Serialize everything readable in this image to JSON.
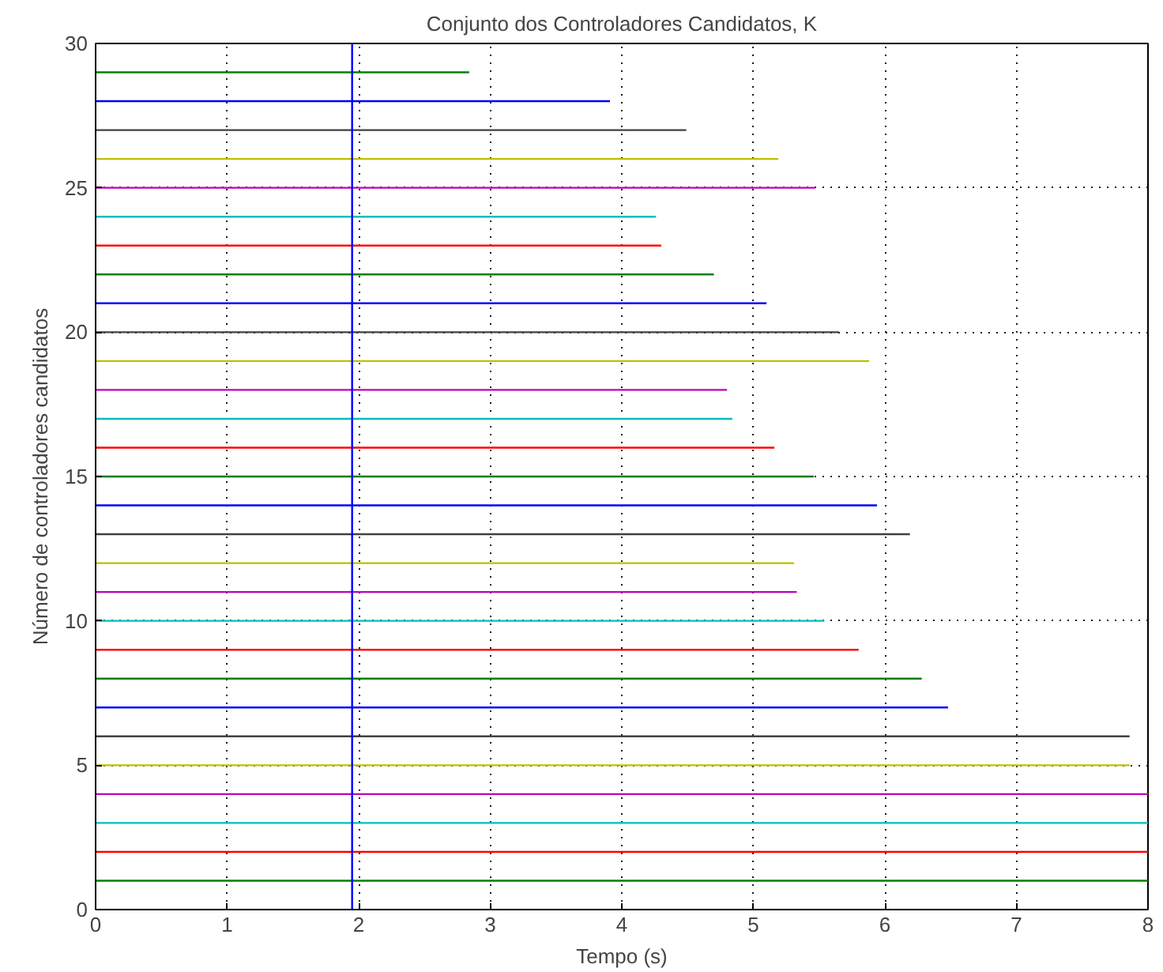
{
  "chart_data": {
    "type": "line",
    "title": "Conjunto dos Controladores Candidatos, K",
    "xlabel": "Tempo (s)",
    "ylabel": "Número de controladores candidatos",
    "xlim": [
      0,
      8
    ],
    "ylim": [
      0,
      30
    ],
    "xticks": [
      0,
      1,
      2,
      3,
      4,
      5,
      6,
      7,
      8
    ],
    "yticks": [
      0,
      5,
      10,
      15,
      20,
      25,
      30
    ],
    "grid": true,
    "line_style": "solid",
    "marker": "none",
    "series": [
      {
        "color": "#008000",
        "x": [
          0,
          8
        ],
        "values": [
          1,
          1
        ]
      },
      {
        "color": "#ff0000",
        "x": [
          0,
          8
        ],
        "values": [
          2,
          2
        ]
      },
      {
        "color": "#00bfbf",
        "x": [
          0,
          8
        ],
        "values": [
          3,
          3
        ]
      },
      {
        "color": "#bf00bf",
        "x": [
          0,
          8
        ],
        "values": [
          4,
          4
        ]
      },
      {
        "color": "#bfbf00",
        "x": [
          0,
          7.86
        ],
        "values": [
          5,
          5
        ]
      },
      {
        "color": "#404040",
        "x": [
          0,
          7.86
        ],
        "values": [
          6,
          6
        ]
      },
      {
        "color": "#0000ff",
        "x": [
          0,
          6.48
        ],
        "values": [
          7,
          7
        ]
      },
      {
        "color": "#008000",
        "x": [
          0,
          6.28
        ],
        "values": [
          8,
          8
        ]
      },
      {
        "color": "#ff0000",
        "x": [
          0,
          5.8
        ],
        "values": [
          9,
          9
        ]
      },
      {
        "color": "#00bfbf",
        "x": [
          0,
          5.54
        ],
        "values": [
          10,
          10
        ]
      },
      {
        "color": "#bf00bf",
        "x": [
          0,
          5.33
        ],
        "values": [
          11,
          11
        ]
      },
      {
        "color": "#bfbf00",
        "x": [
          0,
          5.31
        ],
        "values": [
          12,
          12
        ]
      },
      {
        "color": "#404040",
        "x": [
          0,
          6.19
        ],
        "values": [
          13,
          13
        ]
      },
      {
        "color": "#0000ff",
        "x": [
          0,
          5.94
        ],
        "values": [
          14,
          14
        ]
      },
      {
        "color": "#008000",
        "x": [
          0,
          5.46
        ],
        "values": [
          15,
          15
        ]
      },
      {
        "color": "#ff0000",
        "x": [
          0,
          5.16
        ],
        "values": [
          16,
          16
        ]
      },
      {
        "color": "#00bfbf",
        "x": [
          0,
          4.84
        ],
        "values": [
          17,
          17
        ]
      },
      {
        "color": "#bf00bf",
        "x": [
          0,
          4.8
        ],
        "values": [
          18,
          18
        ]
      },
      {
        "color": "#bfbf00",
        "x": [
          0,
          5.88
        ],
        "values": [
          19,
          19
        ]
      },
      {
        "color": "#404040",
        "x": [
          0,
          5.65
        ],
        "values": [
          20,
          20
        ]
      },
      {
        "color": "#0000ff",
        "x": [
          0,
          5.1
        ],
        "values": [
          21,
          21
        ]
      },
      {
        "color": "#008000",
        "x": [
          0,
          4.7
        ],
        "values": [
          22,
          22
        ]
      },
      {
        "color": "#ff0000",
        "x": [
          0,
          4.3
        ],
        "values": [
          23,
          23
        ]
      },
      {
        "color": "#00bfbf",
        "x": [
          0,
          4.26
        ],
        "values": [
          24,
          24
        ]
      },
      {
        "color": "#bf00bf",
        "x": [
          0,
          5.47
        ],
        "values": [
          25,
          25
        ]
      },
      {
        "color": "#bfbf00",
        "x": [
          0,
          5.19
        ],
        "values": [
          26,
          26
        ]
      },
      {
        "color": "#404040",
        "x": [
          0,
          4.49
        ],
        "values": [
          27,
          27
        ]
      },
      {
        "color": "#0000ff",
        "x": [
          0,
          3.91
        ],
        "values": [
          28,
          28
        ]
      },
      {
        "color": "#008000",
        "x": [
          0,
          2.84
        ],
        "values": [
          29,
          29
        ]
      },
      {
        "color": "#0000ff",
        "x": [
          1.95,
          1.95
        ],
        "values": [
          0,
          30
        ]
      }
    ]
  }
}
